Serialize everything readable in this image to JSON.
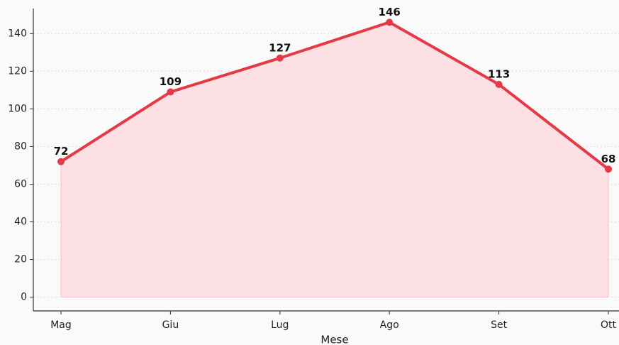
{
  "chart_data": {
    "type": "line",
    "categories": [
      "Mag",
      "Giu",
      "Lug",
      "Ago",
      "Set",
      "Ott"
    ],
    "series": [
      {
        "color": "#e63946",
        "values": [
          72,
          109,
          127,
          146,
          113,
          68
        ]
      }
    ],
    "xlabel": "Mese",
    "ylim": [
      -7.3,
      153.3
    ],
    "yticks": [
      0,
      20,
      40,
      60,
      80,
      100,
      120,
      140
    ],
    "grid": true,
    "fill": "#fde0e4"
  }
}
